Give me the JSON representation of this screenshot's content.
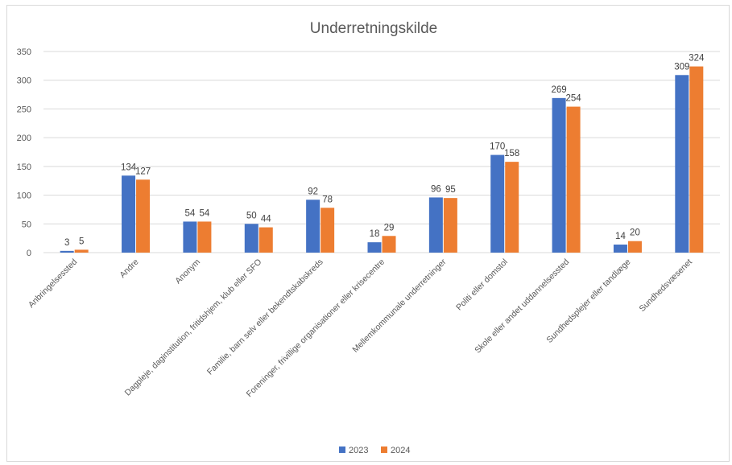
{
  "chart_data": {
    "type": "bar",
    "title": "Underretningskilde",
    "xlabel": "",
    "ylabel": "",
    "ylim": [
      0,
      350
    ],
    "yticks": [
      0,
      50,
      100,
      150,
      200,
      250,
      300,
      350
    ],
    "grid": true,
    "legend_position": "bottom",
    "categories": [
      "Anbringelsessted",
      "Andre",
      "Anonym",
      "Dagpleje, daginstitution, fritidshjem, klub eller SFO",
      "Familie, barn selv eller bekendtskabskreds",
      "Foreninger, frivillige organisationer eller krisecentre",
      "Mellemkommunale underretninger",
      "Politi eller domstol",
      "Skole eller andet uddannelsessted",
      "Sundhedsplejer eller tandlæge",
      "Sundhedsvæsenet"
    ],
    "series": [
      {
        "name": "2023",
        "color": "#4472C4",
        "values": [
          3,
          134,
          54,
          50,
          92,
          18,
          96,
          170,
          269,
          14,
          309
        ]
      },
      {
        "name": "2024",
        "color": "#ED7D31",
        "values": [
          5,
          127,
          54,
          44,
          78,
          29,
          95,
          158,
          254,
          20,
          324
        ]
      }
    ]
  }
}
